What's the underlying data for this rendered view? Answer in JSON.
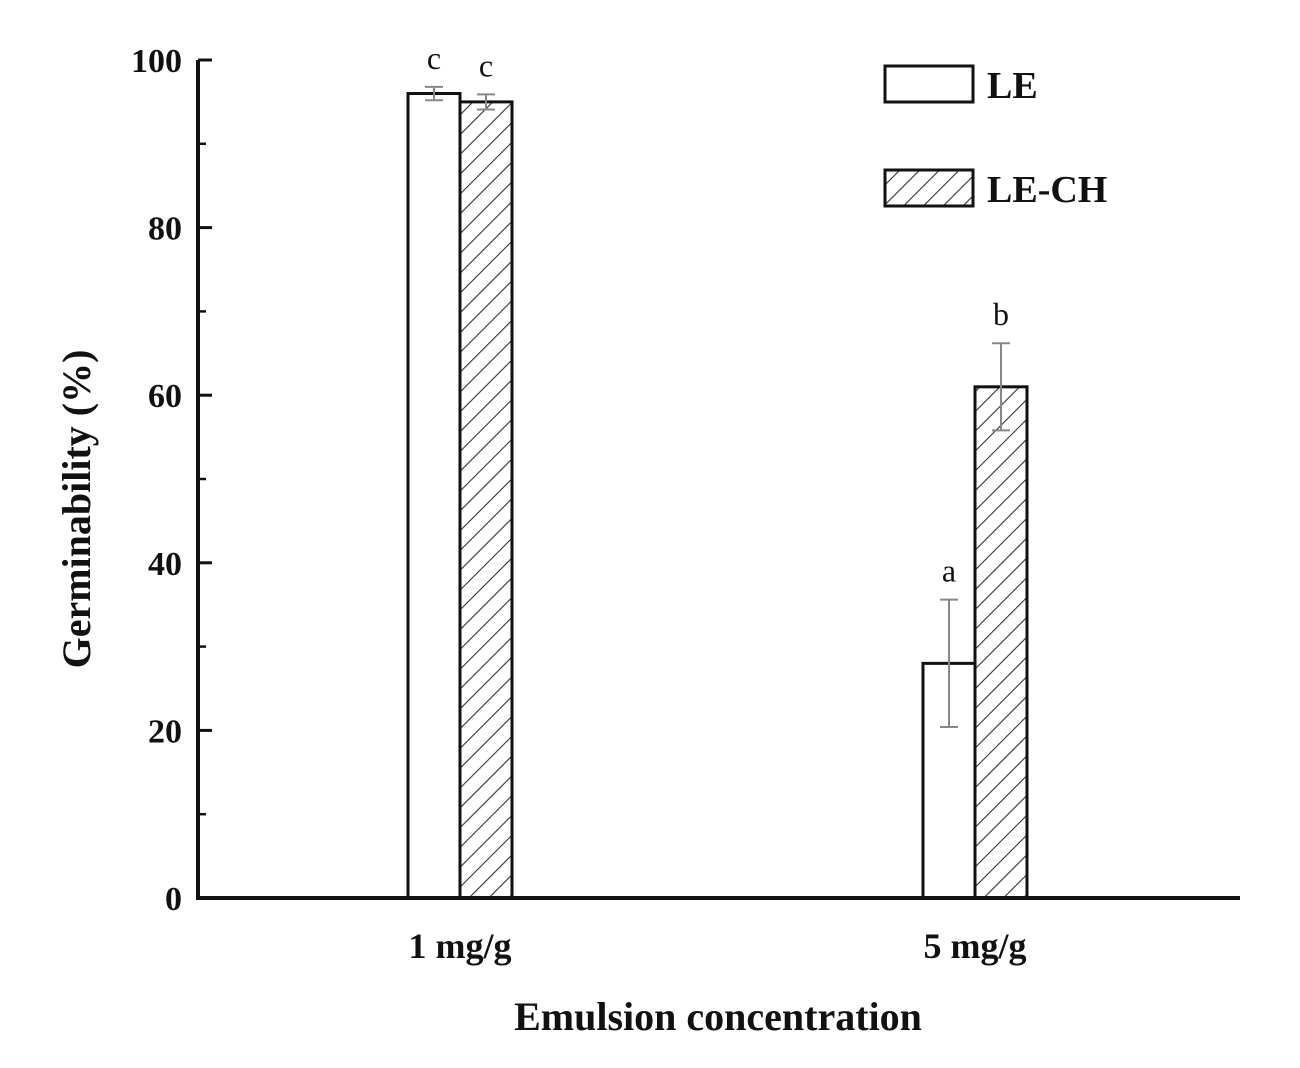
{
  "chart_data": {
    "type": "bar",
    "categories": [
      "1 mg/g",
      "5 mg/g"
    ],
    "series": [
      {
        "name": "LE",
        "values": [
          96,
          28
        ],
        "errors": [
          0.8,
          7.6
        ],
        "significance": [
          "c",
          "a"
        ],
        "pattern": "solid",
        "fill": "#ffffff"
      },
      {
        "name": "LE-CH",
        "values": [
          95,
          61
        ],
        "errors": [
          0.9,
          5.2
        ],
        "significance": [
          "c",
          "b"
        ],
        "pattern": "hatched",
        "fill": "#ffffff"
      }
    ],
    "xlabel": "Emulsion concentration",
    "ylabel": "Germinability (%)",
    "ylim": [
      0,
      100
    ],
    "yticks": [
      "0",
      "20",
      "40",
      "60",
      "80",
      "100"
    ],
    "ytick_values": [
      0,
      20,
      40,
      60,
      80,
      100
    ],
    "legend_position": "top-right",
    "grid": false,
    "colors": {
      "axis": "#111111",
      "bar_stroke": "#111111",
      "error_bar": "#888888",
      "hatch": "#333333"
    }
  }
}
